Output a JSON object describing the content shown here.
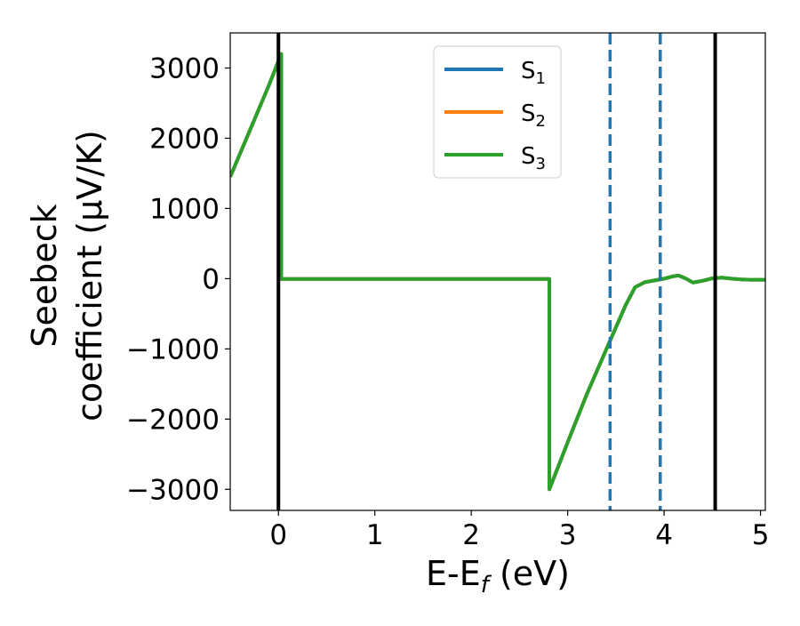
{
  "chart_data": {
    "type": "line",
    "xlabel_parts": [
      "E-E",
      "f",
      " (eV)"
    ],
    "ylabel_lines": [
      "Seebeck",
      "coefficient  (μV/K)"
    ],
    "xlim": [
      -0.5,
      5.05
    ],
    "ylim": [
      -3300,
      3500
    ],
    "xticks": [
      0,
      1,
      2,
      3,
      4,
      5
    ],
    "yticks": [
      -3000,
      -2000,
      -1000,
      0,
      1000,
      2000,
      3000
    ],
    "xtick_labels": [
      "0",
      "1",
      "2",
      "3",
      "4",
      "5"
    ],
    "ytick_labels": [
      "−3000",
      "−2000",
      "−1000",
      "0",
      "1000",
      "2000",
      "3000"
    ],
    "grid": false,
    "legend_position": "top-center",
    "series": [
      {
        "name_base": "S",
        "name_sub": "1",
        "color": "#1f77b4",
        "x": [
          -0.5,
          -0.3,
          -0.1,
          0.0,
          0.03,
          0.03,
          1.0,
          2.0,
          2.81,
          2.81,
          3.0,
          3.2,
          3.45,
          3.6,
          3.7,
          3.8,
          3.9,
          4.0,
          4.08,
          4.15,
          4.22,
          4.3,
          4.4,
          4.5,
          4.6,
          4.7,
          4.8,
          4.9,
          5.05
        ],
        "y": [
          1450,
          2100,
          2750,
          3100,
          3200,
          -5,
          -5,
          -5,
          -5,
          -3000,
          -2330,
          -1640,
          -850,
          -380,
          -120,
          -50,
          -25,
          0,
          30,
          45,
          5,
          -55,
          -30,
          5,
          15,
          0,
          -10,
          -15,
          -15
        ]
      },
      {
        "name_base": "S",
        "name_sub": "2",
        "color": "#ff7f0e",
        "x": [
          -0.5,
          -0.3,
          -0.1,
          0.0,
          0.03,
          0.03,
          1.0,
          2.0,
          2.81,
          2.81,
          3.0,
          3.2,
          3.45,
          3.6,
          3.7,
          3.8,
          3.9,
          4.0,
          4.08,
          4.15,
          4.22,
          4.3,
          4.4,
          4.5,
          4.6,
          4.7,
          4.8,
          4.9,
          5.05
        ],
        "y": [
          1450,
          2100,
          2750,
          3100,
          3200,
          -5,
          -5,
          -5,
          -5,
          -3000,
          -2330,
          -1640,
          -850,
          -380,
          -120,
          -50,
          -25,
          0,
          30,
          45,
          5,
          -55,
          -30,
          5,
          15,
          0,
          -10,
          -15,
          -15
        ]
      },
      {
        "name_base": "S",
        "name_sub": "3",
        "color": "#2ca02c",
        "x": [
          -0.5,
          -0.3,
          -0.1,
          0.0,
          0.03,
          0.03,
          1.0,
          2.0,
          2.81,
          2.81,
          3.0,
          3.2,
          3.45,
          3.6,
          3.7,
          3.8,
          3.9,
          4.0,
          4.08,
          4.15,
          4.22,
          4.3,
          4.4,
          4.5,
          4.6,
          4.7,
          4.8,
          4.9,
          5.05
        ],
        "y": [
          1450,
          2100,
          2750,
          3100,
          3200,
          -5,
          -5,
          -5,
          -5,
          -3000,
          -2330,
          -1640,
          -850,
          -380,
          -120,
          -50,
          -25,
          0,
          30,
          45,
          5,
          -55,
          -30,
          5,
          15,
          0,
          -10,
          -15,
          -15
        ]
      }
    ],
    "vertical_lines": [
      {
        "x": 0.0,
        "style": "solid",
        "color": "#000000"
      },
      {
        "x": 4.53,
        "style": "solid",
        "color": "#000000"
      },
      {
        "x": 3.44,
        "style": "dashed",
        "color": "#1f77b4"
      },
      {
        "x": 3.96,
        "style": "dashed",
        "color": "#1f77b4"
      }
    ]
  }
}
